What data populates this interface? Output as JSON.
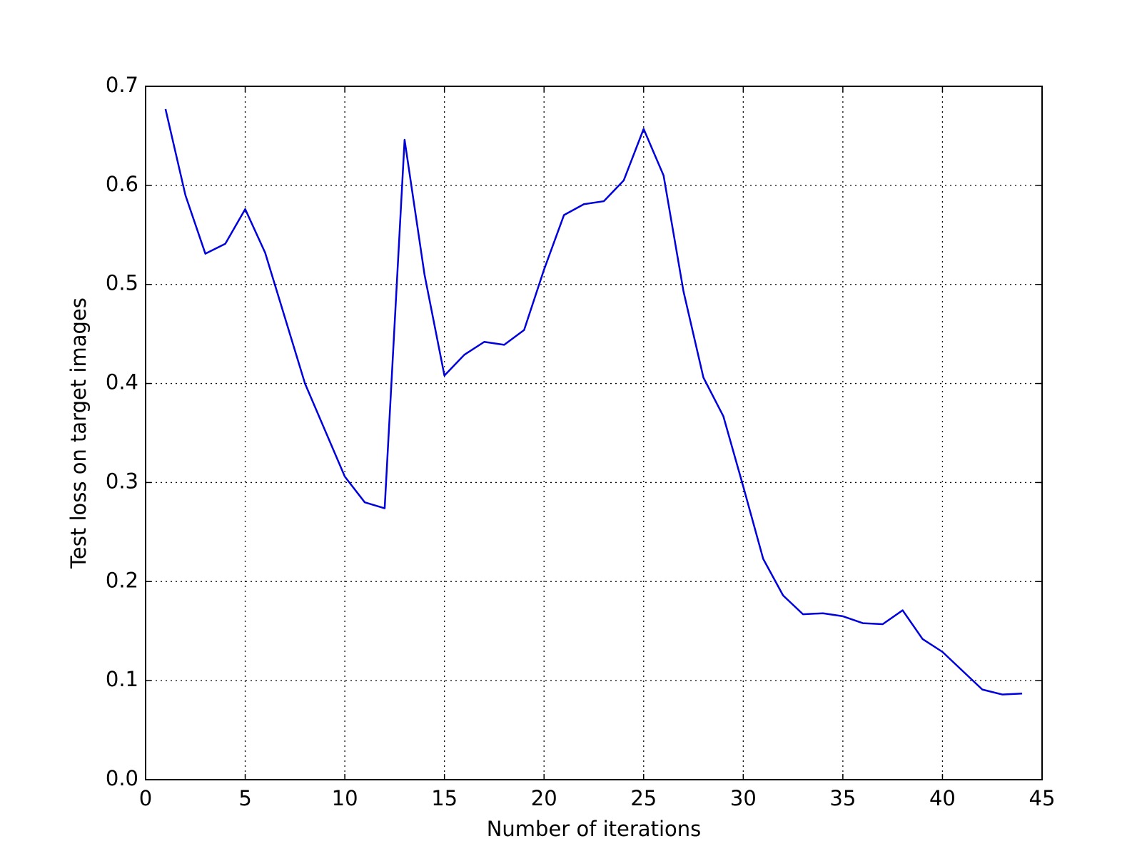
{
  "chart_data": {
    "type": "line",
    "x_label": "Number of iterations",
    "y_label": "Test loss on target images",
    "x": [
      1,
      2,
      3,
      4,
      5,
      6,
      7,
      8,
      9,
      10,
      11,
      12,
      13,
      14,
      15,
      16,
      17,
      18,
      19,
      20,
      21,
      22,
      23,
      24,
      25,
      26,
      27,
      28,
      29,
      30,
      31,
      32,
      33,
      34,
      35,
      36,
      37,
      38,
      39,
      40,
      41,
      42,
      43,
      44
    ],
    "values": [
      0.677,
      0.59,
      0.531,
      0.541,
      0.576,
      0.532,
      0.466,
      0.4,
      0.353,
      0.306,
      0.28,
      0.274,
      0.646,
      0.51,
      0.408,
      0.429,
      0.442,
      0.439,
      0.454,
      0.515,
      0.57,
      0.581,
      0.584,
      0.605,
      0.657,
      0.61,
      0.493,
      0.406,
      0.367,
      0.296,
      0.223,
      0.186,
      0.167,
      0.168,
      0.165,
      0.158,
      0.157,
      0.171,
      0.142,
      0.129,
      0.11,
      0.091,
      0.086,
      0.087
    ],
    "color": "#0000dd",
    "xlim": [
      0,
      45
    ],
    "xticks": [
      0,
      5,
      10,
      15,
      20,
      25,
      30,
      35,
      40,
      45
    ],
    "ylim": [
      0,
      0.7
    ],
    "yticks": [
      {
        "value": 0,
        "label": "0.0"
      },
      0.1,
      0.2,
      0.3,
      0.4,
      0.5,
      0.6,
      0.7
    ],
    "grid": true
  }
}
